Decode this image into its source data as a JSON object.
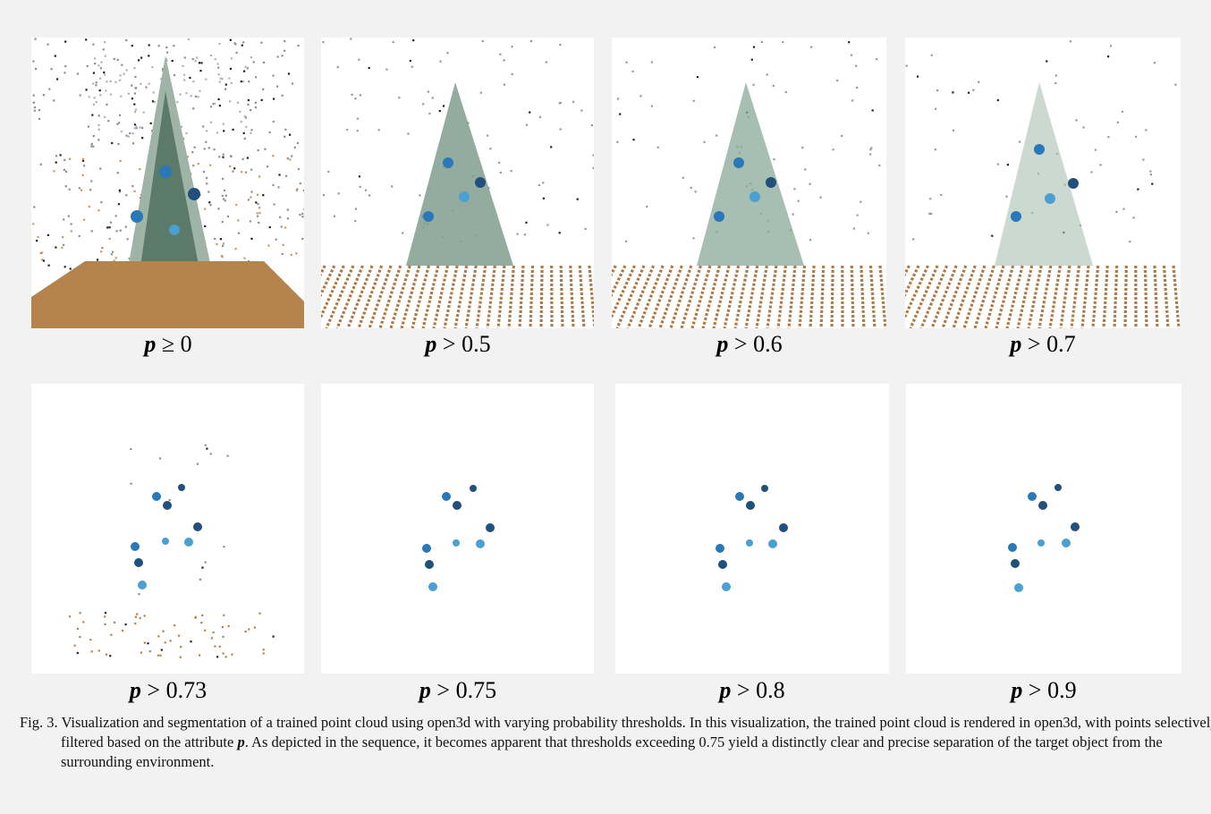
{
  "figure": {
    "panels": [
      {
        "p_symbol": "p",
        "relation": "≥",
        "threshold": "0"
      },
      {
        "p_symbol": "p",
        "relation": ">",
        "threshold": "0.5"
      },
      {
        "p_symbol": "p",
        "relation": ">",
        "threshold": "0.6"
      },
      {
        "p_symbol": "p",
        "relation": ">",
        "threshold": "0.7"
      },
      {
        "p_symbol": "p",
        "relation": ">",
        "threshold": "0.73"
      },
      {
        "p_symbol": "p",
        "relation": ">",
        "threshold": "0.75"
      },
      {
        "p_symbol": "p",
        "relation": ">",
        "threshold": "0.8"
      },
      {
        "p_symbol": "p",
        "relation": ">",
        "threshold": "0.9"
      }
    ],
    "caption": {
      "part1": "Fig. 3. Visualization and segmentation of a trained point cloud using open3d with varying probability thresholds. In this visualization, the trained point cloud is rendered in open3d, with points selectively filtered based on the attribute ",
      "p_symbol": "p",
      "part2": ". As depicted in the sequence, it becomes apparent that thresholds exceeding 0.75 yield a distinctly clear and precise separation of the target object from the surrounding environment."
    }
  },
  "colors": {
    "background": "#f2f2f2",
    "tree_green": "#3c5a4a",
    "ornament_blue": "#1e6fa8",
    "floor_brown": "#b5834c"
  }
}
